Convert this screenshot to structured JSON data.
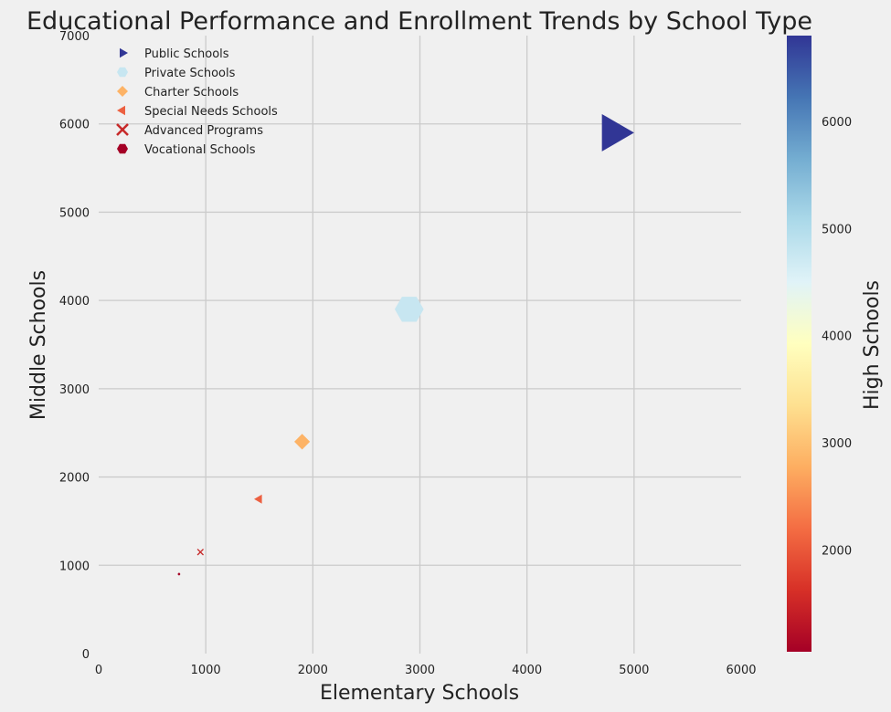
{
  "chart_data": {
    "type": "scatter",
    "title": "Educational Performance and Enrollment Trends by School Type",
    "xlabel": "Elementary Schools",
    "ylabel": "Middle Schools",
    "colorbar_label": "High Schools",
    "xlim": [
      0,
      6000
    ],
    "ylim": [
      0,
      7000
    ],
    "xticks": [
      0,
      1000,
      2000,
      3000,
      4000,
      5000,
      6000
    ],
    "yticks": [
      0,
      1000,
      2000,
      3000,
      4000,
      5000,
      6000,
      7000
    ],
    "colorbar_ticks": [
      2000,
      3000,
      4000,
      5000,
      6000
    ],
    "colorbar_range": [
      1050,
      6800
    ],
    "colormap": "RdYlBu",
    "grid": true,
    "legend_position": "top-left",
    "series": [
      {
        "name": "Public Schools",
        "marker": "triangle-right",
        "x": 4800,
        "y": 5900,
        "high_schools": 6800,
        "color": "#313695"
      },
      {
        "name": "Private Schools",
        "marker": "hexagon",
        "x": 2900,
        "y": 3900,
        "high_schools": 4800,
        "color": "#c7e6f1"
      },
      {
        "name": "Charter Schools",
        "marker": "diamond",
        "x": 1900,
        "y": 2400,
        "high_schools": 2900,
        "color": "#fdb366"
      },
      {
        "name": "Special Needs Schools",
        "marker": "triangle-left",
        "x": 1500,
        "y": 1750,
        "high_schools": 2150,
        "color": "#ec6041"
      },
      {
        "name": "Advanced Programs",
        "marker": "x",
        "x": 950,
        "y": 1150,
        "high_schools": 1500,
        "color": "#c72a2a"
      },
      {
        "name": "Vocational Schools",
        "marker": "hexagon",
        "x": 750,
        "y": 900,
        "high_schools": 1050,
        "color": "#a50026"
      }
    ]
  }
}
